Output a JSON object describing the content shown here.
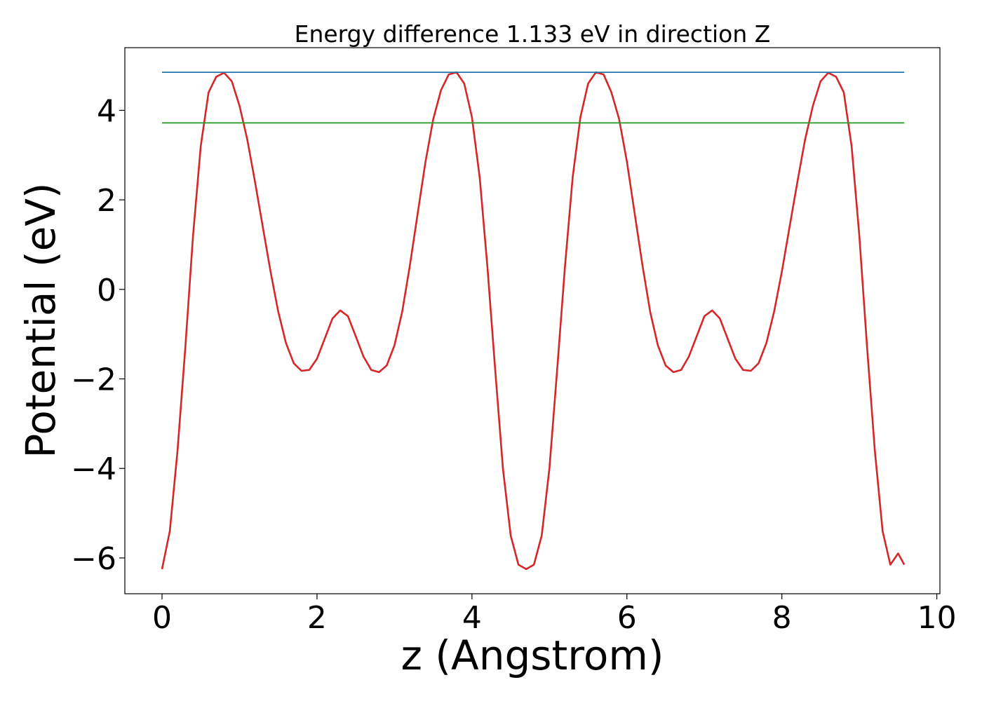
{
  "chart_data": {
    "type": "line",
    "title": "Energy difference 1.133 eV in direction Z",
    "xlabel": "z (Angstrom)",
    "ylabel": "Potential (eV)",
    "xlim": [
      -0.48,
      10.04
    ],
    "ylim": [
      -6.8,
      5.4
    ],
    "xticks": [
      0,
      2,
      4,
      6,
      8,
      10
    ],
    "xtick_labels": [
      "0",
      "2",
      "4",
      "6",
      "8",
      "10"
    ],
    "yticks": [
      -6,
      -4,
      -2,
      0,
      2,
      4
    ],
    "ytick_labels": [
      "−6",
      "−4",
      "−2",
      "0",
      "2",
      "4"
    ],
    "grid": false,
    "legend": "none",
    "series": [
      {
        "color": "#d62728",
        "x": [
          0.0,
          0.1,
          0.2,
          0.3,
          0.4,
          0.5,
          0.6,
          0.7,
          0.8,
          0.9,
          1.0,
          1.1,
          1.2,
          1.3,
          1.4,
          1.5,
          1.6,
          1.7,
          1.8,
          1.9,
          2.0,
          2.1,
          2.2,
          2.3,
          2.4,
          2.5,
          2.6,
          2.7,
          2.8,
          2.9,
          3.0,
          3.1,
          3.2,
          3.3,
          3.4,
          3.5,
          3.6,
          3.7,
          3.8,
          3.9,
          4.0,
          4.1,
          4.2,
          4.3,
          4.4,
          4.5,
          4.6,
          4.7,
          4.8,
          4.9,
          5.0,
          5.1,
          5.2,
          5.3,
          5.4,
          5.5,
          5.6,
          5.7,
          5.8,
          5.9,
          6.0,
          6.1,
          6.2,
          6.3,
          6.4,
          6.5,
          6.6,
          6.7,
          6.8,
          6.9,
          7.0,
          7.1,
          7.2,
          7.3,
          7.4,
          7.5,
          7.6,
          7.7,
          7.8,
          7.9,
          8.0,
          8.1,
          8.2,
          8.3,
          8.4,
          8.5,
          8.6,
          8.7,
          8.8,
          8.9,
          9.0,
          9.1,
          9.2,
          9.3,
          9.4,
          9.5,
          9.58
        ],
        "y": [
          -6.25,
          -5.4,
          -3.6,
          -1.3,
          1.2,
          3.2,
          4.4,
          4.75,
          4.84,
          4.65,
          4.1,
          3.35,
          2.4,
          1.4,
          0.4,
          -0.5,
          -1.2,
          -1.65,
          -1.82,
          -1.8,
          -1.55,
          -1.1,
          -0.65,
          -0.47,
          -0.6,
          -1.05,
          -1.5,
          -1.8,
          -1.85,
          -1.7,
          -1.25,
          -0.5,
          0.55,
          1.7,
          2.85,
          3.8,
          4.45,
          4.8,
          4.85,
          4.6,
          3.85,
          2.5,
          0.5,
          -1.8,
          -4.0,
          -5.5,
          -6.15,
          -6.25,
          -6.15,
          -5.5,
          -4.0,
          -1.8,
          0.5,
          2.5,
          3.85,
          4.6,
          4.85,
          4.8,
          4.4,
          3.8,
          2.85,
          1.7,
          0.55,
          -0.5,
          -1.25,
          -1.7,
          -1.85,
          -1.8,
          -1.5,
          -1.05,
          -0.6,
          -0.47,
          -0.65,
          -1.1,
          -1.55,
          -1.8,
          -1.82,
          -1.65,
          -1.2,
          -0.5,
          0.4,
          1.4,
          2.4,
          3.35,
          4.1,
          4.65,
          4.84,
          4.75,
          4.4,
          3.2,
          1.2,
          -1.3,
          -3.6,
          -5.4,
          -6.15,
          -5.9,
          -6.15
        ]
      },
      {
        "color": "#1f77b4",
        "x": [
          0.0,
          9.58
        ],
        "y": [
          4.85,
          4.85
        ]
      },
      {
        "color": "#2ca02c",
        "x": [
          0.0,
          9.58
        ],
        "y": [
          3.72,
          3.72
        ]
      }
    ]
  }
}
